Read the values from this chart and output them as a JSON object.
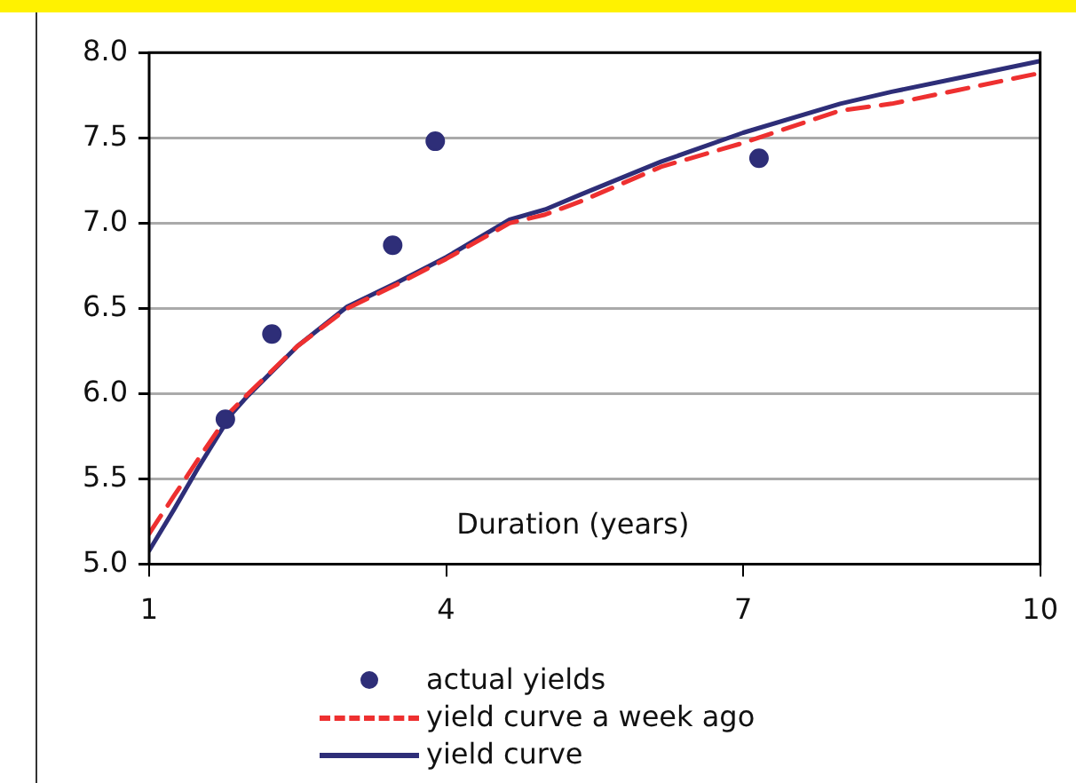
{
  "chart_data": {
    "type": "line",
    "xlabel": "Duration (years)",
    "xlim": [
      1,
      10
    ],
    "xticks": [
      1,
      4,
      7,
      10
    ],
    "ylim": [
      5,
      8
    ],
    "yticks": [
      {
        "value": 5,
        "label": "5.0"
      },
      {
        "value": 5.5,
        "label": "5.5"
      },
      {
        "value": 6,
        "label": "6.0"
      },
      {
        "value": 6.5,
        "label": "6.5"
      },
      {
        "value": 7,
        "label": "7.0"
      },
      {
        "value": 7.5,
        "label": "7.5"
      },
      {
        "value": 8,
        "label": "8.0"
      }
    ],
    "grid": "y",
    "legend": "bottom",
    "series": [
      {
        "name": "actual yields",
        "type": "scatter",
        "marker": "circle",
        "color": "#2e2e78",
        "x": [
          1.77,
          2.24,
          3.46,
          3.89,
          7.16
        ],
        "values": [
          5.85,
          6.35,
          6.87,
          7.48,
          7.38
        ]
      },
      {
        "name": "yield curve a week ago",
        "type": "line",
        "line_style": "dashed",
        "marker": "none",
        "color": "#ee3030",
        "x": [
          1,
          1.25,
          1.5,
          1.83,
          2,
          2.5,
          3,
          3.5,
          4,
          4.64,
          5,
          5.37,
          6.17,
          7,
          7.98,
          8.5,
          9.17,
          10
        ],
        "values": [
          5.18,
          5.4,
          5.62,
          5.9,
          6,
          6.28,
          6.5,
          6.64,
          6.79,
          7,
          7.05,
          7.13,
          7.33,
          7.47,
          7.66,
          7.7,
          7.78,
          7.88
        ]
      },
      {
        "name": "yield curve",
        "type": "line",
        "line_style": "solid",
        "marker": "none",
        "color": "#2e2e78",
        "x": [
          1,
          1.25,
          1.5,
          1.83,
          2,
          2.5,
          3,
          3.5,
          4,
          4.64,
          5,
          5.37,
          6.17,
          7,
          7.98,
          8.5,
          9.17,
          10
        ],
        "values": [
          5.08,
          5.32,
          5.57,
          5.88,
          5.99,
          6.28,
          6.51,
          6.65,
          6.8,
          7.02,
          7.08,
          7.17,
          7.36,
          7.53,
          7.7,
          7.77,
          7.85,
          7.95
        ]
      }
    ]
  }
}
